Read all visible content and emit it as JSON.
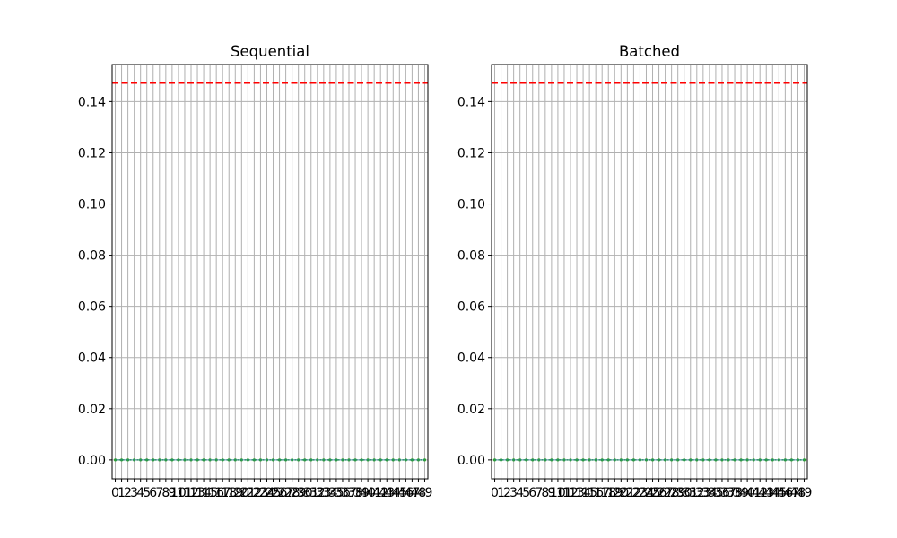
{
  "chart_data": [
    {
      "type": "line",
      "title": "Sequential",
      "xlabel": "",
      "ylabel": "",
      "x": [
        0,
        1,
        2,
        3,
        4,
        5,
        6,
        7,
        8,
        9,
        10,
        11,
        12,
        13,
        14,
        15,
        16,
        17,
        18,
        19,
        20,
        21,
        22,
        23,
        24,
        25,
        26,
        27,
        28,
        29,
        30,
        31,
        32,
        33,
        34,
        35,
        36,
        37,
        38,
        39,
        40,
        41,
        42,
        43,
        44,
        45,
        46,
        47,
        48,
        49
      ],
      "xticks": [
        "0",
        "1",
        "2",
        "3",
        "4",
        "5",
        "6",
        "7",
        "8",
        "9",
        "10",
        "11",
        "12",
        "13",
        "14",
        "15",
        "16",
        "17",
        "18",
        "19",
        "20",
        "21",
        "22",
        "23",
        "24",
        "25",
        "26",
        "27",
        "28",
        "29",
        "30",
        "31",
        "32",
        "33",
        "34",
        "35",
        "36",
        "37",
        "38",
        "39",
        "40",
        "41",
        "42",
        "43",
        "44",
        "45",
        "46",
        "47",
        "48",
        "49"
      ],
      "xlim": [
        -0.5,
        49.5
      ],
      "ylim": [
        -0.0074,
        0.1545
      ],
      "yticks": [
        "0.00",
        "0.02",
        "0.04",
        "0.06",
        "0.08",
        "0.10",
        "0.12",
        "0.14"
      ],
      "ytick_values": [
        0,
        0.02,
        0.04,
        0.06,
        0.08,
        0.1,
        0.12,
        0.14
      ],
      "grid": true,
      "series": [
        {
          "values": [
            0,
            0,
            0,
            0,
            0,
            0,
            0,
            0,
            0,
            0,
            0,
            0,
            0,
            0,
            0,
            0,
            0,
            0,
            0,
            0,
            0,
            0,
            0,
            0,
            0,
            0,
            0,
            0,
            0,
            0,
            0,
            0,
            0,
            0,
            0,
            0,
            0,
            0,
            0,
            0,
            0,
            0,
            0,
            0,
            0,
            0,
            0,
            0,
            0,
            0
          ],
          "color": "#2ca02c",
          "style": "dotted-markers"
        },
        {
          "values": [
            0,
            0,
            0,
            0,
            0,
            0,
            0,
            0,
            0,
            0,
            0,
            0,
            0,
            0,
            0,
            0,
            0,
            0,
            0,
            0,
            0,
            0,
            0,
            0,
            0,
            0,
            0,
            0,
            0,
            0,
            0,
            0,
            0,
            0,
            0,
            0,
            0,
            0,
            0,
            0,
            0,
            0,
            0,
            0,
            0,
            0,
            0,
            0,
            0,
            0
          ],
          "color": "#1f77b4",
          "style": "line"
        }
      ],
      "reference_lines": [
        {
          "y": 0.1473,
          "color": "#ff0000",
          "style": "dashed"
        }
      ]
    },
    {
      "type": "line",
      "title": "Batched",
      "xlabel": "",
      "ylabel": "",
      "x": [
        0,
        1,
        2,
        3,
        4,
        5,
        6,
        7,
        8,
        9,
        10,
        11,
        12,
        13,
        14,
        15,
        16,
        17,
        18,
        19,
        20,
        21,
        22,
        23,
        24,
        25,
        26,
        27,
        28,
        29,
        30,
        31,
        32,
        33,
        34,
        35,
        36,
        37,
        38,
        39,
        40,
        41,
        42,
        43,
        44,
        45,
        46,
        47,
        48,
        49
      ],
      "xticks": [
        "0",
        "1",
        "2",
        "3",
        "4",
        "5",
        "6",
        "7",
        "8",
        "9",
        "10",
        "11",
        "12",
        "13",
        "14",
        "15",
        "16",
        "17",
        "18",
        "19",
        "20",
        "21",
        "22",
        "23",
        "24",
        "25",
        "26",
        "27",
        "28",
        "29",
        "30",
        "31",
        "32",
        "33",
        "34",
        "35",
        "36",
        "37",
        "38",
        "39",
        "40",
        "41",
        "42",
        "43",
        "44",
        "45",
        "46",
        "47",
        "48",
        "49"
      ],
      "xlim": [
        -0.5,
        49.5
      ],
      "ylim": [
        -0.0074,
        0.1545
      ],
      "yticks": [
        "0.00",
        "0.02",
        "0.04",
        "0.06",
        "0.08",
        "0.10",
        "0.12",
        "0.14"
      ],
      "ytick_values": [
        0,
        0.02,
        0.04,
        0.06,
        0.08,
        0.1,
        0.12,
        0.14
      ],
      "grid": true,
      "series": [
        {
          "values": [
            0,
            0,
            0,
            0,
            0,
            0,
            0,
            0,
            0,
            0,
            0,
            0,
            0,
            0,
            0,
            0,
            0,
            0,
            0,
            0,
            0,
            0,
            0,
            0,
            0,
            0,
            0,
            0,
            0,
            0,
            0,
            0,
            0,
            0,
            0,
            0,
            0,
            0,
            0,
            0,
            0,
            0,
            0,
            0,
            0,
            0,
            0,
            0,
            0,
            0
          ],
          "color": "#2ca02c",
          "style": "dotted-markers"
        },
        {
          "values": [
            0,
            0,
            0,
            0,
            0,
            0,
            0,
            0,
            0,
            0,
            0,
            0,
            0,
            0,
            0,
            0,
            0,
            0,
            0,
            0,
            0,
            0,
            0,
            0,
            0,
            0,
            0,
            0,
            0,
            0,
            0,
            0,
            0,
            0,
            0,
            0,
            0,
            0,
            0,
            0,
            0,
            0,
            0,
            0,
            0,
            0,
            0,
            0,
            0,
            0
          ],
          "color": "#1f77b4",
          "style": "line"
        }
      ],
      "reference_lines": [
        {
          "y": 0.1473,
          "color": "#ff0000",
          "style": "dashed"
        }
      ]
    }
  ]
}
